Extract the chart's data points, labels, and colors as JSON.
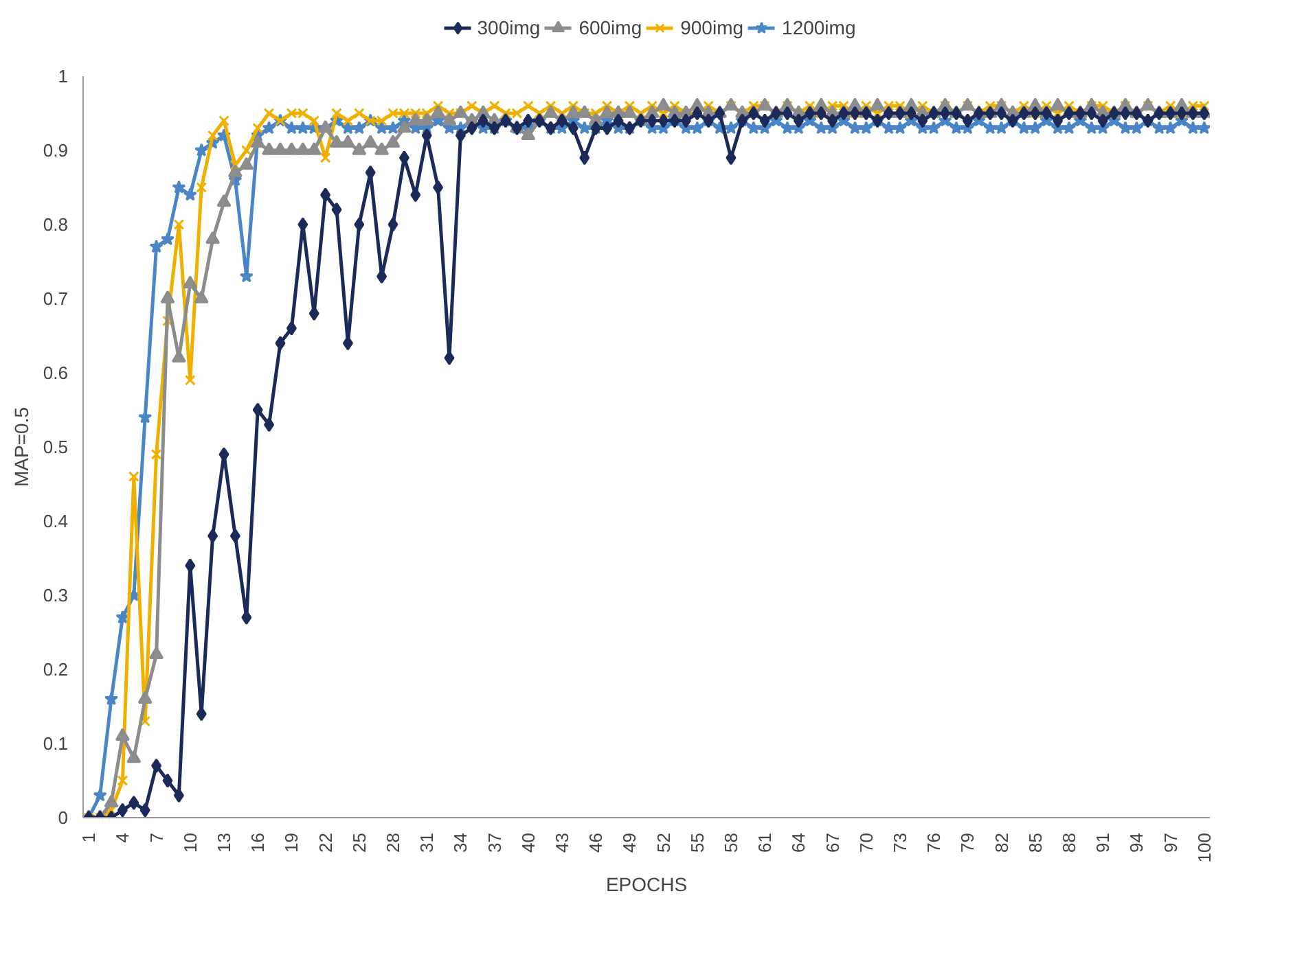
{
  "chart_data": {
    "type": "line",
    "xlabel": "EPOCHS",
    "ylabel": "MAP=0.5",
    "x": [
      1,
      2,
      3,
      4,
      5,
      6,
      7,
      8,
      9,
      10,
      11,
      12,
      13,
      14,
      15,
      16,
      17,
      18,
      19,
      20,
      21,
      22,
      23,
      24,
      25,
      26,
      27,
      28,
      29,
      30,
      31,
      32,
      33,
      34,
      35,
      36,
      37,
      38,
      39,
      40,
      41,
      42,
      43,
      44,
      45,
      46,
      47,
      48,
      49,
      50,
      51,
      52,
      53,
      54,
      55,
      56,
      57,
      58,
      59,
      60,
      61,
      62,
      63,
      64,
      65,
      66,
      67,
      68,
      69,
      70,
      71,
      72,
      73,
      74,
      75,
      76,
      77,
      78,
      79,
      80,
      81,
      82,
      83,
      84,
      85,
      86,
      87,
      88,
      89,
      90,
      91,
      92,
      93,
      94,
      95,
      96,
      97,
      98,
      99,
      100
    ],
    "xlim": [
      0.5,
      100.5
    ],
    "xticks": [
      1,
      4,
      7,
      10,
      13,
      16,
      19,
      22,
      25,
      28,
      31,
      34,
      37,
      40,
      43,
      46,
      49,
      52,
      55,
      58,
      61,
      64,
      67,
      70,
      73,
      76,
      79,
      82,
      85,
      88,
      91,
      94,
      97,
      100
    ],
    "ylim": [
      0,
      1
    ],
    "yticks": [
      0,
      0.1,
      0.2,
      0.3,
      0.4,
      0.5,
      0.6,
      0.7,
      0.8,
      0.9,
      1
    ],
    "grid": false,
    "legend": "top",
    "line_style": "solid",
    "series": [
      {
        "name": "300img",
        "color": "#1c2a5a",
        "marker": "diamond",
        "values": [
          0,
          0,
          0,
          0.01,
          0.02,
          0.01,
          0.07,
          0.05,
          0.03,
          0.34,
          0.14,
          0.38,
          0.49,
          0.38,
          0.27,
          0.55,
          0.53,
          0.64,
          0.66,
          0.8,
          0.68,
          0.84,
          0.82,
          0.64,
          0.8,
          0.87,
          0.73,
          0.8,
          0.89,
          0.84,
          0.92,
          0.85,
          0.62,
          0.92,
          0.93,
          0.94,
          0.93,
          0.94,
          0.93,
          0.94,
          0.94,
          0.93,
          0.94,
          0.93,
          0.89,
          0.93,
          0.93,
          0.94,
          0.93,
          0.94,
          0.94,
          0.94,
          0.94,
          0.94,
          0.95,
          0.94,
          0.95,
          0.89,
          0.94,
          0.95,
          0.94,
          0.95,
          0.95,
          0.94,
          0.95,
          0.95,
          0.94,
          0.95,
          0.95,
          0.95,
          0.94,
          0.95,
          0.95,
          0.95,
          0.94,
          0.95,
          0.95,
          0.95,
          0.94,
          0.95,
          0.95,
          0.95,
          0.94,
          0.95,
          0.95,
          0.95,
          0.94,
          0.95,
          0.95,
          0.95,
          0.94,
          0.95,
          0.95,
          0.95,
          0.94,
          0.95,
          0.95,
          0.95,
          0.95,
          0.95
        ]
      },
      {
        "name": "600img",
        "color": "#8c8c8c",
        "marker": "triangle",
        "values": [
          0,
          0,
          0.02,
          0.11,
          0.08,
          0.16,
          0.22,
          0.7,
          0.62,
          0.72,
          0.7,
          0.78,
          0.83,
          0.87,
          0.88,
          0.91,
          0.9,
          0.9,
          0.9,
          0.9,
          0.9,
          0.93,
          0.91,
          0.91,
          0.9,
          0.91,
          0.9,
          0.91,
          0.93,
          0.94,
          0.94,
          0.95,
          0.94,
          0.95,
          0.94,
          0.95,
          0.94,
          0.94,
          0.93,
          0.92,
          0.94,
          0.95,
          0.94,
          0.95,
          0.95,
          0.94,
          0.95,
          0.95,
          0.95,
          0.94,
          0.95,
          0.96,
          0.95,
          0.95,
          0.96,
          0.95,
          0.95,
          0.96,
          0.95,
          0.95,
          0.96,
          0.95,
          0.96,
          0.95,
          0.95,
          0.96,
          0.95,
          0.95,
          0.96,
          0.95,
          0.96,
          0.95,
          0.95,
          0.96,
          0.95,
          0.95,
          0.96,
          0.95,
          0.96,
          0.95,
          0.95,
          0.96,
          0.95,
          0.95,
          0.96,
          0.95,
          0.96,
          0.95,
          0.95,
          0.96,
          0.95,
          0.95,
          0.96,
          0.95,
          0.96,
          0.95,
          0.95,
          0.96,
          0.95,
          0.95
        ]
      },
      {
        "name": "900img",
        "color": "#f0b000",
        "marker": "cross",
        "values": [
          0,
          0,
          0.01,
          0.05,
          0.46,
          0.13,
          0.49,
          0.67,
          0.8,
          0.59,
          0.85,
          0.92,
          0.94,
          0.88,
          0.9,
          0.93,
          0.95,
          0.94,
          0.95,
          0.95,
          0.94,
          0.89,
          0.95,
          0.94,
          0.95,
          0.94,
          0.94,
          0.95,
          0.95,
          0.95,
          0.95,
          0.96,
          0.95,
          0.95,
          0.96,
          0.95,
          0.96,
          0.95,
          0.95,
          0.96,
          0.95,
          0.96,
          0.95,
          0.96,
          0.95,
          0.95,
          0.96,
          0.95,
          0.96,
          0.95,
          0.96,
          0.95,
          0.96,
          0.95,
          0.95,
          0.96,
          0.95,
          0.96,
          0.95,
          0.96,
          0.96,
          0.95,
          0.96,
          0.95,
          0.96,
          0.95,
          0.96,
          0.96,
          0.95,
          0.96,
          0.95,
          0.96,
          0.96,
          0.95,
          0.96,
          0.95,
          0.96,
          0.95,
          0.96,
          0.95,
          0.96,
          0.96,
          0.95,
          0.96,
          0.95,
          0.96,
          0.95,
          0.96,
          0.95,
          0.96,
          0.96,
          0.95,
          0.96,
          0.95,
          0.96,
          0.95,
          0.96,
          0.95,
          0.96,
          0.96
        ]
      },
      {
        "name": "1200img",
        "color": "#4a86c5",
        "marker": "star",
        "values": [
          0,
          0.03,
          0.16,
          0.27,
          0.3,
          0.54,
          0.77,
          0.78,
          0.85,
          0.84,
          0.9,
          0.91,
          0.92,
          0.86,
          0.73,
          0.92,
          0.93,
          0.94,
          0.93,
          0.93,
          0.93,
          0.93,
          0.94,
          0.93,
          0.93,
          0.94,
          0.93,
          0.93,
          0.94,
          0.93,
          0.93,
          0.94,
          0.93,
          0.93,
          0.94,
          0.93,
          0.93,
          0.94,
          0.93,
          0.93,
          0.94,
          0.93,
          0.93,
          0.94,
          0.93,
          0.93,
          0.94,
          0.93,
          0.93,
          0.94,
          0.93,
          0.93,
          0.94,
          0.93,
          0.93,
          0.94,
          0.93,
          0.93,
          0.94,
          0.93,
          0.93,
          0.94,
          0.93,
          0.93,
          0.94,
          0.93,
          0.93,
          0.94,
          0.93,
          0.93,
          0.94,
          0.93,
          0.93,
          0.94,
          0.93,
          0.93,
          0.94,
          0.93,
          0.93,
          0.94,
          0.93,
          0.93,
          0.94,
          0.93,
          0.93,
          0.94,
          0.93,
          0.93,
          0.94,
          0.93,
          0.93,
          0.94,
          0.93,
          0.93,
          0.94,
          0.93,
          0.93,
          0.94,
          0.93,
          0.93
        ]
      }
    ]
  }
}
